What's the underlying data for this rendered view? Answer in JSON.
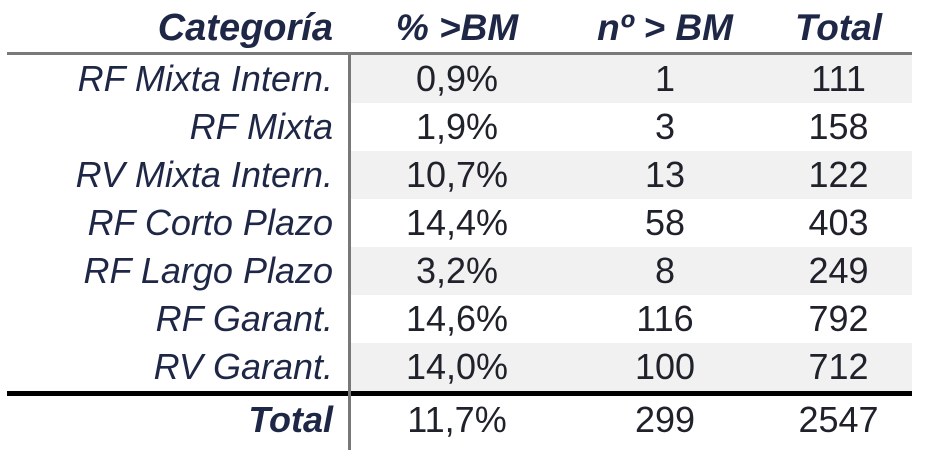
{
  "table": {
    "headers": {
      "category": "Categoría",
      "pct": "% >BM",
      "count": "nº > BM",
      "total": "Total"
    },
    "rows": [
      {
        "category": "RF Mixta Intern.",
        "pct": "0,9%",
        "count": "1",
        "total": "111"
      },
      {
        "category": "RF Mixta",
        "pct": "1,9%",
        "count": "3",
        "total": "158"
      },
      {
        "category": "RV Mixta Intern.",
        "pct": "10,7%",
        "count": "13",
        "total": "122"
      },
      {
        "category": "RF Corto Plazo",
        "pct": "14,4%",
        "count": "58",
        "total": "403"
      },
      {
        "category": "RF Largo Plazo",
        "pct": "3,2%",
        "count": "8",
        "total": "249"
      },
      {
        "category": "RF Garant.",
        "pct": "14,6%",
        "count": "116",
        "total": "792"
      },
      {
        "category": "RV Garant.",
        "pct": "14,0%",
        "count": "100",
        "total": "712"
      }
    ],
    "total_row": {
      "category": "Total",
      "pct": "11,7%",
      "count": "299",
      "total": "2547"
    }
  },
  "colors": {
    "heading_text": "#1f2747",
    "number_text": "#20222b",
    "row_shade": "#f1f1f1",
    "column_divider": "#787878",
    "header_rule": "#7a7a7a",
    "total_rule": "#000000"
  }
}
